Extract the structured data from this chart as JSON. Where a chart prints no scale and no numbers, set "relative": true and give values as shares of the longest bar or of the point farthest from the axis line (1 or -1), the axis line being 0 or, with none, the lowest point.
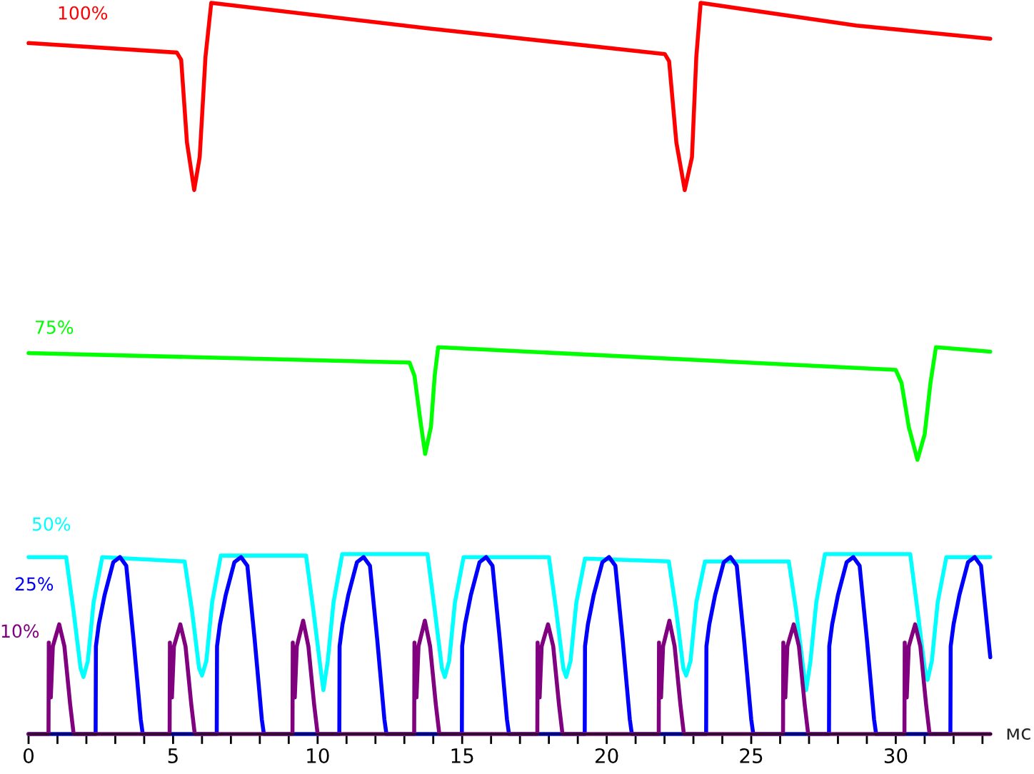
{
  "chart_data": {
    "type": "line",
    "relative": true,
    "xlabel": "мс",
    "xlim": [
      0,
      33.3
    ],
    "xticks": [
      0,
      {
        "value": 1,
        "label": null
      },
      {
        "value": 2,
        "label": null
      },
      {
        "value": 3,
        "label": null
      },
      {
        "value": 4,
        "label": null
      },
      5,
      {
        "value": 6,
        "label": null
      },
      {
        "value": 7,
        "label": null
      },
      {
        "value": 8,
        "label": null
      },
      {
        "value": 9,
        "label": null
      },
      10,
      {
        "value": 11,
        "label": null
      },
      {
        "value": 12,
        "label": null
      },
      {
        "value": 13,
        "label": null
      },
      {
        "value": 14,
        "label": null
      },
      15,
      {
        "value": 16,
        "label": null
      },
      {
        "value": 17,
        "label": null
      },
      {
        "value": 18,
        "label": null
      },
      {
        "value": 19,
        "label": null
      },
      20,
      {
        "value": 21,
        "label": null
      },
      {
        "value": 22,
        "label": null
      },
      {
        "value": 23,
        "label": null
      },
      {
        "value": 24,
        "label": null
      },
      25,
      {
        "value": 26,
        "label": null
      },
      {
        "value": 27,
        "label": null
      },
      {
        "value": 28,
        "label": null
      },
      {
        "value": 29,
        "label": null
      },
      30,
      {
        "value": 31,
        "label": null
      },
      {
        "value": 32,
        "label": null
      },
      {
        "value": 33,
        "label": null
      }
    ],
    "grid": false,
    "legend": false,
    "marker": "none",
    "line_style": "solid",
    "series": [
      {
        "name": "100%",
        "color": "#ff0000",
        "x": [
          0,
          5.13,
          5.28,
          5.48,
          5.73,
          5.92,
          6.12,
          6.32,
          13.82,
          22.01,
          22.16,
          22.41,
          22.7,
          22.95,
          23.1,
          23.25,
          28.63,
          33.27
        ],
        "values": [
          0.945,
          0.932,
          0.922,
          0.809,
          0.744,
          0.789,
          0.926,
          1.0,
          0.965,
          0.93,
          0.92,
          0.809,
          0.744,
          0.789,
          0.926,
          1.0,
          0.969,
          0.951
        ]
      },
      {
        "name": "75%",
        "color": "#00ff00",
        "x": [
          0,
          13.18,
          13.35,
          13.55,
          13.72,
          13.92,
          14.05,
          14.17,
          30.0,
          30.2,
          30.45,
          30.75,
          31.0,
          31.2,
          31.39,
          33.27
        ],
        "values": [
          0.521,
          0.508,
          0.49,
          0.43,
          0.383,
          0.42,
          0.49,
          0.529,
          0.498,
          0.48,
          0.42,
          0.375,
          0.41,
          0.48,
          0.529,
          0.523
        ]
      },
      {
        "name": "50%",
        "color": "#00ffff",
        "x": [
          0,
          1.3,
          1.55,
          1.8,
          1.9,
          2.05,
          2.25,
          2.55,
          5.4,
          5.65,
          5.9,
          6.0,
          6.15,
          6.35,
          6.65,
          9.6,
          9.85,
          10.1,
          10.2,
          10.35,
          10.55,
          10.85,
          13.8,
          14.05,
          14.3,
          14.4,
          14.55,
          14.75,
          15.05,
          18.0,
          18.25,
          18.5,
          18.6,
          18.75,
          18.95,
          19.25,
          22.15,
          22.4,
          22.65,
          22.75,
          22.9,
          23.1,
          23.4,
          26.3,
          26.55,
          26.8,
          26.9,
          27.05,
          27.25,
          27.55,
          30.5,
          30.75,
          31.0,
          31.1,
          31.25,
          31.45,
          31.75,
          33.27
        ],
        "values": [
          0.242,
          0.242,
          0.17,
          0.09,
          0.078,
          0.1,
          0.18,
          0.242,
          0.236,
          0.17,
          0.09,
          0.08,
          0.1,
          0.18,
          0.244,
          0.244,
          0.17,
          0.09,
          0.06,
          0.1,
          0.18,
          0.246,
          0.246,
          0.17,
          0.09,
          0.078,
          0.1,
          0.18,
          0.242,
          0.242,
          0.17,
          0.09,
          0.078,
          0.1,
          0.18,
          0.24,
          0.236,
          0.17,
          0.09,
          0.08,
          0.1,
          0.18,
          0.236,
          0.236,
          0.17,
          0.09,
          0.06,
          0.1,
          0.18,
          0.246,
          0.246,
          0.17,
          0.09,
          0.074,
          0.1,
          0.18,
          0.242,
          0.242
        ]
      },
      {
        "name": "25%",
        "color": "#0000ff",
        "x": [
          0,
          2.32,
          2.33,
          2.43,
          2.63,
          2.93,
          3.16,
          3.38,
          3.63,
          3.88,
          3.95,
          6.51,
          6.52,
          6.62,
          6.82,
          7.12,
          7.35,
          7.57,
          7.82,
          8.07,
          8.14,
          10.75,
          10.76,
          10.86,
          11.06,
          11.36,
          11.59,
          11.81,
          12.06,
          12.31,
          12.38,
          14.99,
          15.0,
          15.1,
          15.3,
          15.6,
          15.83,
          16.05,
          16.3,
          16.55,
          16.62,
          19.24,
          19.25,
          19.35,
          19.55,
          19.85,
          20.08,
          20.3,
          20.55,
          20.8,
          20.87,
          23.44,
          23.45,
          23.55,
          23.75,
          24.05,
          24.28,
          24.5,
          24.75,
          25.0,
          25.07,
          27.69,
          27.7,
          27.8,
          28.0,
          28.3,
          28.53,
          28.75,
          29.0,
          29.25,
          29.32,
          31.89,
          31.9,
          32.0,
          32.2,
          32.5,
          32.73,
          32.95,
          33.27
        ],
        "values": [
          0,
          0,
          0.12,
          0.15,
          0.19,
          0.235,
          0.242,
          0.23,
          0.13,
          0.02,
          0,
          0,
          0.12,
          0.15,
          0.19,
          0.235,
          0.242,
          0.23,
          0.13,
          0.02,
          0,
          0,
          0.12,
          0.15,
          0.19,
          0.235,
          0.242,
          0.23,
          0.13,
          0.02,
          0,
          0,
          0.12,
          0.15,
          0.19,
          0.235,
          0.242,
          0.23,
          0.13,
          0.02,
          0,
          0,
          0.12,
          0.15,
          0.19,
          0.235,
          0.242,
          0.23,
          0.13,
          0.02,
          0,
          0,
          0.12,
          0.15,
          0.19,
          0.235,
          0.242,
          0.23,
          0.13,
          0.02,
          0,
          0,
          0.12,
          0.15,
          0.19,
          0.235,
          0.242,
          0.23,
          0.13,
          0.02,
          0,
          0,
          0.12,
          0.15,
          0.19,
          0.235,
          0.242,
          0.23,
          0.105
        ]
      },
      {
        "name": "10%",
        "color": "#800080",
        "x": [
          0,
          0.69,
          0.7,
          0.77,
          0.84,
          1.06,
          1.24,
          1.44,
          1.56,
          4.88,
          4.89,
          4.96,
          5.03,
          5.25,
          5.43,
          5.63,
          5.75,
          9.13,
          9.14,
          9.21,
          9.28,
          9.5,
          9.68,
          9.88,
          10.0,
          13.34,
          13.35,
          13.42,
          13.49,
          13.71,
          13.89,
          14.09,
          14.21,
          17.6,
          17.61,
          17.68,
          17.75,
          17.97,
          18.15,
          18.35,
          18.47,
          21.8,
          21.81,
          21.88,
          21.95,
          22.17,
          22.35,
          22.55,
          22.67,
          26.1,
          26.11,
          26.18,
          26.25,
          26.47,
          26.65,
          26.85,
          26.97,
          30.3,
          30.31,
          30.38,
          30.45,
          30.67,
          30.85,
          31.05,
          31.17,
          33.27
        ],
        "values": [
          0,
          0,
          0.125,
          0.05,
          0.12,
          0.15,
          0.12,
          0.04,
          0,
          0,
          0.125,
          0.05,
          0.12,
          0.15,
          0.12,
          0.04,
          0,
          0,
          0.125,
          0.05,
          0.12,
          0.155,
          0.12,
          0.04,
          0,
          0,
          0.125,
          0.05,
          0.12,
          0.155,
          0.12,
          0.04,
          0,
          0,
          0.125,
          0.05,
          0.12,
          0.15,
          0.12,
          0.04,
          0,
          0,
          0.125,
          0.05,
          0.12,
          0.155,
          0.12,
          0.04,
          0,
          0,
          0.125,
          0.05,
          0.12,
          0.15,
          0.12,
          0.04,
          0,
          0,
          0.125,
          0.05,
          0.12,
          0.15,
          0.12,
          0.04,
          0,
          0
        ]
      }
    ]
  }
}
